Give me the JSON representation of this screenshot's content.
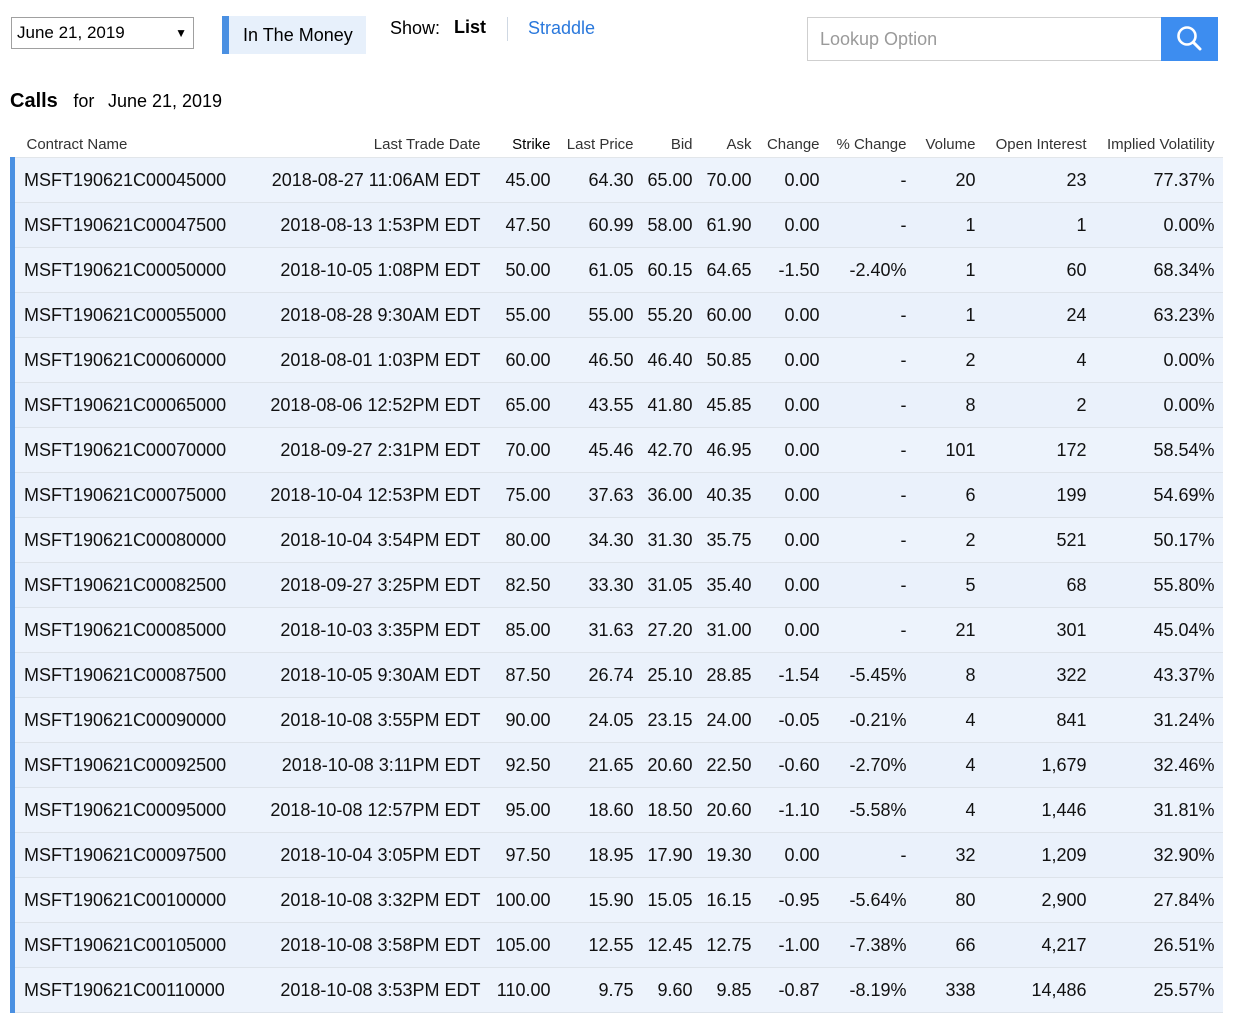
{
  "toolbar": {
    "date_value": "June 21, 2019",
    "in_the_money_label": "In The Money",
    "show_label": "Show:",
    "list_label": "List",
    "straddle_label": "Straddle",
    "lookup_placeholder": "Lookup Option",
    "search_icon": "search-icon"
  },
  "section": {
    "title": "Calls",
    "for_label": "for",
    "date": "June 21, 2019"
  },
  "colors": {
    "accent": "#4a90e2",
    "link": "#2a78dc",
    "negative": "#e23a3a",
    "row_bg": "#edf3fc"
  },
  "table": {
    "headers": [
      "Contract Name",
      "Last Trade Date",
      "Strike",
      "Last Price",
      "Bid",
      "Ask",
      "Change",
      "% Change",
      "Volume",
      "Open Interest",
      "Implied Volatility"
    ],
    "rows": [
      [
        "MSFT190621C00045000",
        "2018-08-27 11:06AM EDT",
        "45.00",
        "64.30",
        "65.00",
        "70.00",
        "0.00",
        "-",
        "20",
        "23",
        "77.37%"
      ],
      [
        "MSFT190621C00047500",
        "2018-08-13 1:53PM EDT",
        "47.50",
        "60.99",
        "58.00",
        "61.90",
        "0.00",
        "-",
        "1",
        "1",
        "0.00%"
      ],
      [
        "MSFT190621C00050000",
        "2018-10-05 1:08PM EDT",
        "50.00",
        "61.05",
        "60.15",
        "64.65",
        "-1.50",
        "-2.40%",
        "1",
        "60",
        "68.34%"
      ],
      [
        "MSFT190621C00055000",
        "2018-08-28 9:30AM EDT",
        "55.00",
        "55.00",
        "55.20",
        "60.00",
        "0.00",
        "-",
        "1",
        "24",
        "63.23%"
      ],
      [
        "MSFT190621C00060000",
        "2018-08-01 1:03PM EDT",
        "60.00",
        "46.50",
        "46.40",
        "50.85",
        "0.00",
        "-",
        "2",
        "4",
        "0.00%"
      ],
      [
        "MSFT190621C00065000",
        "2018-08-06 12:52PM EDT",
        "65.00",
        "43.55",
        "41.80",
        "45.85",
        "0.00",
        "-",
        "8",
        "2",
        "0.00%"
      ],
      [
        "MSFT190621C00070000",
        "2018-09-27 2:31PM EDT",
        "70.00",
        "45.46",
        "42.70",
        "46.95",
        "0.00",
        "-",
        "101",
        "172",
        "58.54%"
      ],
      [
        "MSFT190621C00075000",
        "2018-10-04 12:53PM EDT",
        "75.00",
        "37.63",
        "36.00",
        "40.35",
        "0.00",
        "-",
        "6",
        "199",
        "54.69%"
      ],
      [
        "MSFT190621C00080000",
        "2018-10-04 3:54PM EDT",
        "80.00",
        "34.30",
        "31.30",
        "35.75",
        "0.00",
        "-",
        "2",
        "521",
        "50.17%"
      ],
      [
        "MSFT190621C00082500",
        "2018-09-27 3:25PM EDT",
        "82.50",
        "33.30",
        "31.05",
        "35.40",
        "0.00",
        "-",
        "5",
        "68",
        "55.80%"
      ],
      [
        "MSFT190621C00085000",
        "2018-10-03 3:35PM EDT",
        "85.00",
        "31.63",
        "27.20",
        "31.00",
        "0.00",
        "-",
        "21",
        "301",
        "45.04%"
      ],
      [
        "MSFT190621C00087500",
        "2018-10-05 9:30AM EDT",
        "87.50",
        "26.74",
        "25.10",
        "28.85",
        "-1.54",
        "-5.45%",
        "8",
        "322",
        "43.37%"
      ],
      [
        "MSFT190621C00090000",
        "2018-10-08 3:55PM EDT",
        "90.00",
        "24.05",
        "23.15",
        "24.00",
        "-0.05",
        "-0.21%",
        "4",
        "841",
        "31.24%"
      ],
      [
        "MSFT190621C00092500",
        "2018-10-08 3:11PM EDT",
        "92.50",
        "21.65",
        "20.60",
        "22.50",
        "-0.60",
        "-2.70%",
        "4",
        "1,679",
        "32.46%"
      ],
      [
        "MSFT190621C00095000",
        "2018-10-08 12:57PM EDT",
        "95.00",
        "18.60",
        "18.50",
        "20.60",
        "-1.10",
        "-5.58%",
        "4",
        "1,446",
        "31.81%"
      ],
      [
        "MSFT190621C00097500",
        "2018-10-04 3:05PM EDT",
        "97.50",
        "18.95",
        "17.90",
        "19.30",
        "0.00",
        "-",
        "32",
        "1,209",
        "32.90%"
      ],
      [
        "MSFT190621C00100000",
        "2018-10-08 3:32PM EDT",
        "100.00",
        "15.90",
        "15.05",
        "16.15",
        "-0.95",
        "-5.64%",
        "80",
        "2,900",
        "27.84%"
      ],
      [
        "MSFT190621C00105000",
        "2018-10-08 3:58PM EDT",
        "105.00",
        "12.55",
        "12.45",
        "12.75",
        "-1.00",
        "-7.38%",
        "66",
        "4,217",
        "26.51%"
      ],
      [
        "MSFT190621C00110000",
        "2018-10-08 3:53PM EDT",
        "110.00",
        "9.75",
        "9.60",
        "9.85",
        "-0.87",
        "-8.19%",
        "338",
        "14,486",
        "25.57%"
      ]
    ]
  }
}
